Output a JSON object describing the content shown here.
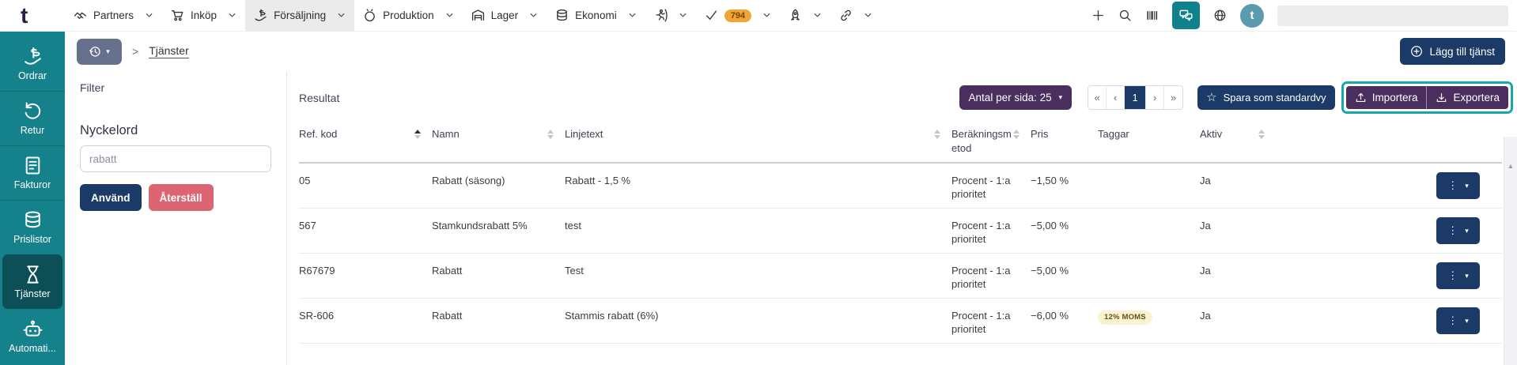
{
  "topnav": {
    "logo": "t",
    "items": [
      {
        "id": "partners",
        "label": "Partners",
        "icon": "handshake"
      },
      {
        "id": "inkop",
        "label": "Inköp",
        "icon": "cart"
      },
      {
        "id": "forsaljning",
        "label": "Försäljning",
        "icon": "sales-hand",
        "active": true
      },
      {
        "id": "produktion",
        "label": "Produktion",
        "icon": "pot"
      },
      {
        "id": "lager",
        "label": "Lager",
        "icon": "warehouse"
      },
      {
        "id": "ekonomi",
        "label": "Ekonomi",
        "icon": "coins"
      },
      {
        "id": "runner",
        "label": "",
        "icon": "runner"
      },
      {
        "id": "tasks",
        "label": "",
        "icon": "check",
        "badge": "794"
      },
      {
        "id": "rocket",
        "label": "",
        "icon": "rocket"
      },
      {
        "id": "integrations",
        "label": "",
        "icon": "link"
      }
    ],
    "right_icons": [
      "plus",
      "search",
      "barcode",
      "chat",
      "globe"
    ],
    "avatar_letter": "t"
  },
  "sidebar": {
    "items": [
      {
        "id": "ordrar",
        "label": "Ordrar",
        "icon": "sales-hand"
      },
      {
        "id": "retur",
        "label": "Retur",
        "icon": "undo"
      },
      {
        "id": "fakturor",
        "label": "Fakturor",
        "icon": "invoice"
      },
      {
        "id": "prislistor",
        "label": "Prislistor",
        "icon": "coins"
      },
      {
        "id": "tjanster",
        "label": "Tjänster",
        "icon": "hourglass",
        "active": true
      },
      {
        "id": "automatisering",
        "label": "Automati...",
        "icon": "robot"
      }
    ]
  },
  "breadcrumb": {
    "current": "Tjänster"
  },
  "header": {
    "add_button": "Lägg till tjänst"
  },
  "filter": {
    "title": "Filter",
    "keyword_label": "Nyckelord",
    "keyword_value": "rabatt",
    "apply": "Använd",
    "reset": "Återställ"
  },
  "results": {
    "title": "Resultat",
    "page_size_label": "Antal per sida: 25",
    "pagination": {
      "first": "«",
      "prev": "‹",
      "current": "1",
      "next": "›",
      "last": "»"
    },
    "save_view": "Spara som standardvy",
    "import": "Importera",
    "export": "Exportera"
  },
  "glyphs": {
    "menu_dots": "⋮",
    "menu_caret": "▾",
    "history_caret": "▾",
    "psize_caret": "▾",
    "scroll_up": "▲",
    "star": "☆",
    "breadcrumb_sep": ">"
  },
  "table": {
    "columns": [
      {
        "label": "Ref. kod",
        "sortable": true,
        "sorted": "asc"
      },
      {
        "label": "Namn",
        "sortable": true,
        "sorted": null
      },
      {
        "label": "Linjetext",
        "sortable": true,
        "sorted": null
      },
      {
        "label": "Beräkningsmetod",
        "sortable": true,
        "sorted": null
      },
      {
        "label": "Pris",
        "sortable": false,
        "sorted": null
      },
      {
        "label": "Taggar",
        "sortable": false,
        "sorted": null
      },
      {
        "label": "Aktiv",
        "sortable": true,
        "sorted": null
      }
    ],
    "rows": [
      {
        "ref": "05",
        "namn": "Rabatt (säsong)",
        "linjetext": "Rabatt - 1,5 %",
        "metod": "Procent - 1:a prioritet",
        "pris": "−1,50 %",
        "taggar": "",
        "aktiv": "Ja"
      },
      {
        "ref": "567",
        "namn": "Stamkundsrabatt 5%",
        "linjetext": "test",
        "metod": "Procent - 1:a prioritet",
        "pris": "−5,00 %",
        "taggar": "",
        "aktiv": "Ja"
      },
      {
        "ref": "R67679",
        "namn": "Rabatt",
        "linjetext": "Test",
        "metod": "Procent - 1:a prioritet",
        "pris": "−5,00 %",
        "taggar": "",
        "aktiv": "Ja"
      },
      {
        "ref": "SR-606",
        "namn": "Rabatt",
        "linjetext": "Stammis rabatt (6%)",
        "metod": "Procent - 1:a prioritet",
        "pris": "−6,00 %",
        "taggar": "12% MOMS",
        "aktiv": "Ja"
      }
    ]
  },
  "colors": {
    "sidebar_teal": "#15818b",
    "sidebar_active": "#0c4f57",
    "navy": "#1b3a67",
    "plum": "#4a2e5e",
    "salmon": "#dc6571",
    "highlight_teal": "#19a7ae",
    "badge_amber": "#f2a437",
    "tag_yellow": "#fbf3d0"
  }
}
